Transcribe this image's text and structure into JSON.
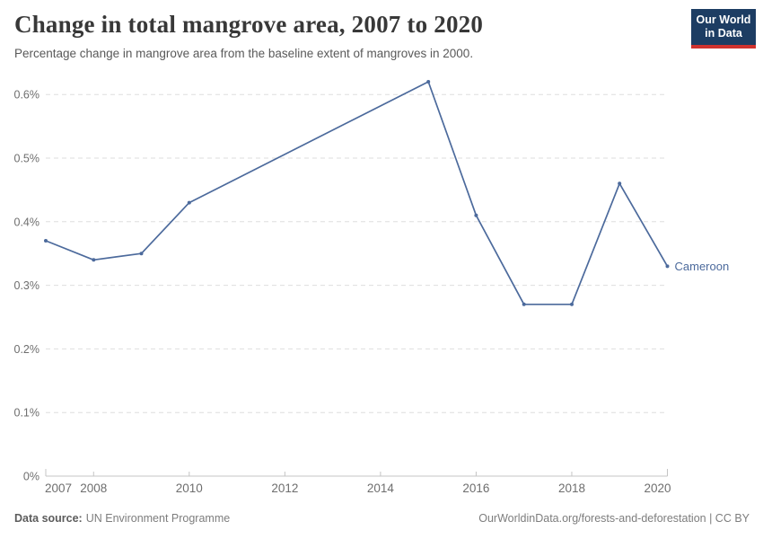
{
  "header": {
    "title": "Change in total mangrove area, 2007 to 2020",
    "subtitle": "Percentage change in mangrove area from the baseline extent of mangroves in 2000."
  },
  "logo": {
    "line1": "Our World",
    "line2": "in Data",
    "bg_color": "#1d3d63",
    "stripe_color": "#d0322e"
  },
  "chart_data": {
    "type": "line",
    "title": "Change in total mangrove area, 2007 to 2020",
    "subtitle": "Percentage change in mangrove area from the baseline extent of mangroves in 2000.",
    "unit": "%",
    "series": [
      {
        "name": "Cameroon",
        "color": "#4c6a9c",
        "points": [
          [
            2007,
            0.37
          ],
          [
            2008,
            0.34
          ],
          [
            2009,
            0.35
          ],
          [
            2010,
            0.43
          ],
          [
            2015,
            0.62
          ],
          [
            2016,
            0.41
          ],
          [
            2017,
            0.27
          ],
          [
            2018,
            0.27
          ],
          [
            2019,
            0.46
          ],
          [
            2020,
            0.33
          ]
        ]
      }
    ],
    "xlim": [
      2007,
      2020
    ],
    "ylim": [
      0,
      0.62
    ],
    "x_ticks": [
      2007,
      2008,
      2010,
      2012,
      2014,
      2016,
      2018,
      2020
    ],
    "y_ticks": [
      {
        "value": 0.0,
        "label": "0%"
      },
      {
        "value": 0.1,
        "label": "0.1%"
      },
      {
        "value": 0.2,
        "label": "0.2%"
      },
      {
        "value": 0.3,
        "label": "0.3%"
      },
      {
        "value": 0.4,
        "label": "0.4%"
      },
      {
        "value": 0.5,
        "label": "0.5%"
      },
      {
        "value": 0.6,
        "label": "0.6%"
      }
    ],
    "grid": "horizontal dashed",
    "legend_position": "end-of-line label",
    "colors": {
      "line": "#4c6a9c",
      "gridline": "#dedede",
      "axis": "#c4c4c4",
      "tick_text": "#6e6e6e"
    }
  },
  "footer": {
    "source_label": "Data source:",
    "source_text": "UN Environment Programme",
    "credit": "OurWorldinData.org/forests-and-deforestation | CC BY"
  }
}
